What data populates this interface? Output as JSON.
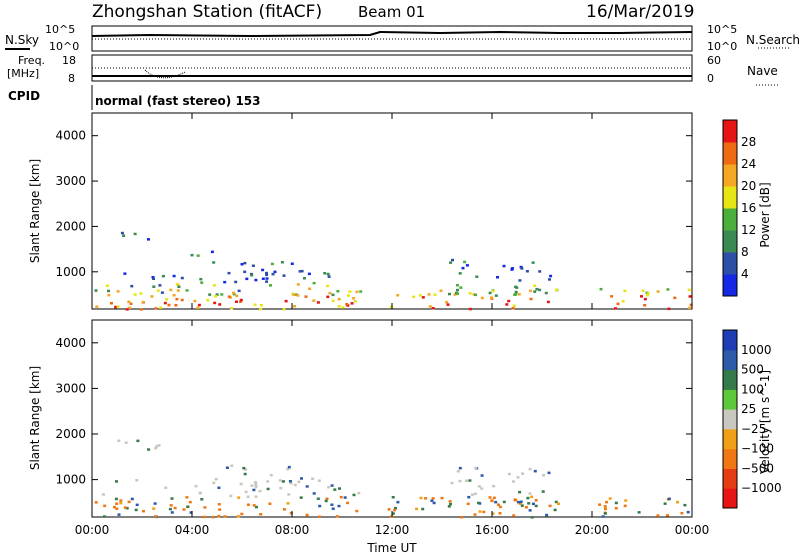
{
  "header": {
    "title": "Zhongshan Station (fitACF)",
    "beam": "Beam 01",
    "date": "16/Mar/2019"
  },
  "strip_labels": {
    "nsky": "N.Sky",
    "nsky_hi": "10^5",
    "nsky_lo": "10^0",
    "nsearch": "N.Search",
    "nsearch_hi": "10^5",
    "nsearch_lo": "10^0",
    "freq_l1": "Freq.",
    "freq_l2": "[MHz]",
    "freq_hi": "18",
    "freq_lo": "8",
    "nave": "Nave",
    "nave_hi": "60",
    "nave_lo": "0",
    "cpid": "CPID",
    "cpid_text": "normal (fast stereo) 153"
  },
  "colors": {
    "power": [
      "#1428e6",
      "#2d4fa8",
      "#3a8a52",
      "#4caf3c",
      "#e6e614",
      "#f5a623",
      "#f06a14",
      "#e61414"
    ],
    "velocity": [
      "#1e3cb4",
      "#2a5aa8",
      "#357a4a",
      "#5cc83c",
      "#c8c8c0",
      "#f0a014",
      "#f07814",
      "#e63c14",
      "#e61414"
    ]
  },
  "chart_data": [
    {
      "type": "heatmap",
      "quantity": "power",
      "xlabel": "",
      "ylabel": "Slant Range [km]",
      "xlim": [
        0,
        24
      ],
      "ylim": [
        180,
        4500
      ],
      "x_ticks": [
        "00:00",
        "04:00",
        "08:00",
        "12:00",
        "16:00",
        "20:00",
        "00:00"
      ],
      "y_ticks": [
        1000,
        2000,
        3000,
        4000
      ],
      "colorbar": {
        "label": "Power [dB]",
        "ticks": [
          4,
          8,
          12,
          16,
          20,
          24,
          28
        ],
        "range": [
          0,
          32
        ]
      }
    },
    {
      "type": "heatmap",
      "quantity": "velocity",
      "xlabel": "Time UT",
      "ylabel": "Slant Range [km]",
      "xlim": [
        0,
        24
      ],
      "ylim": [
        180,
        4500
      ],
      "x_ticks": [
        "00:00",
        "04:00",
        "08:00",
        "12:00",
        "16:00",
        "20:00",
        "00:00"
      ],
      "y_ticks": [
        1000,
        2000,
        3000,
        4000
      ],
      "colorbar": {
        "label": "Velocity [m s^-1]",
        "ticks": [
          "1000",
          "500",
          "100",
          "25",
          "−25",
          "−100",
          "−500",
          "−1000"
        ]
      }
    }
  ]
}
